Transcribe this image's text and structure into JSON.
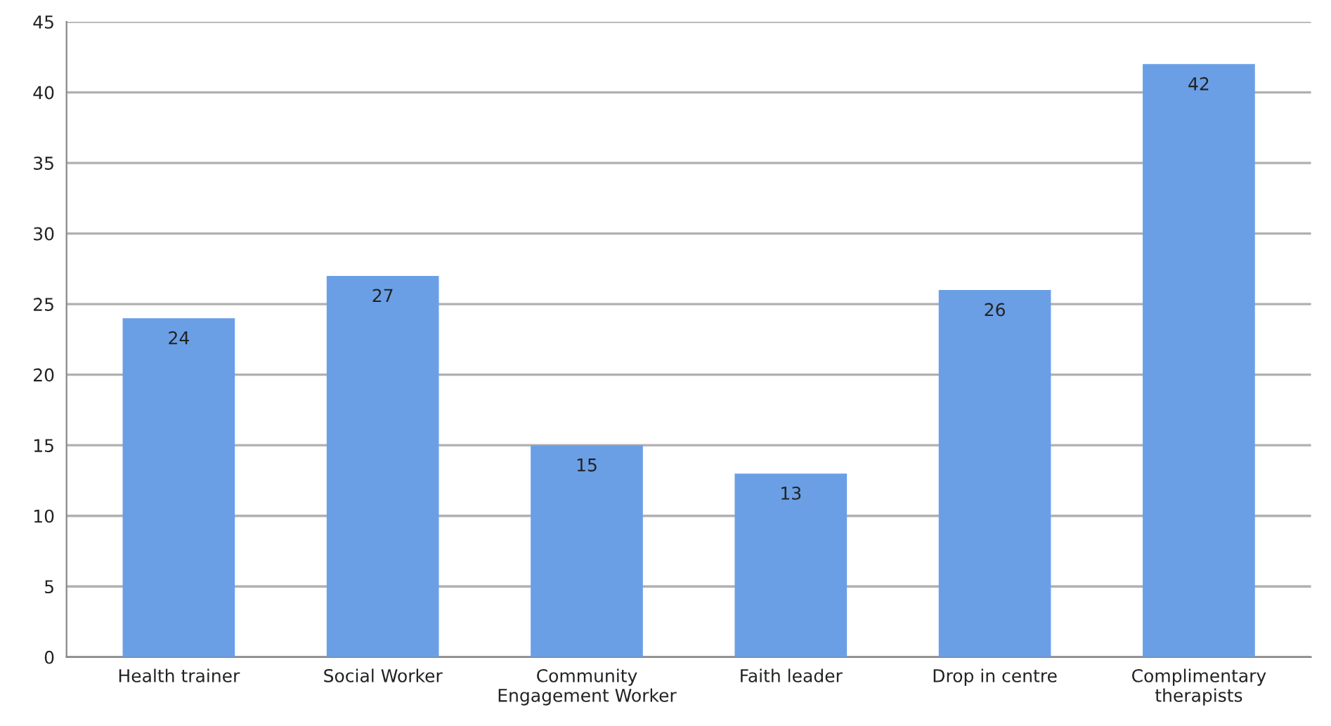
{
  "chart_data": {
    "type": "bar",
    "categories": [
      "Health trainer",
      "Social Worker",
      "Community\nEngagement Worker",
      "Faith leader",
      "Drop in centre",
      "Complimentary\ntherapists"
    ],
    "values": [
      24,
      27,
      15,
      13,
      26,
      42
    ],
    "color": "#6a9fe6",
    "ylim": [
      0,
      45
    ],
    "yticks": [
      0,
      5,
      10,
      15,
      20,
      25,
      30,
      35,
      40,
      45
    ],
    "grid": "y",
    "data_labels": true,
    "legend": false
  }
}
